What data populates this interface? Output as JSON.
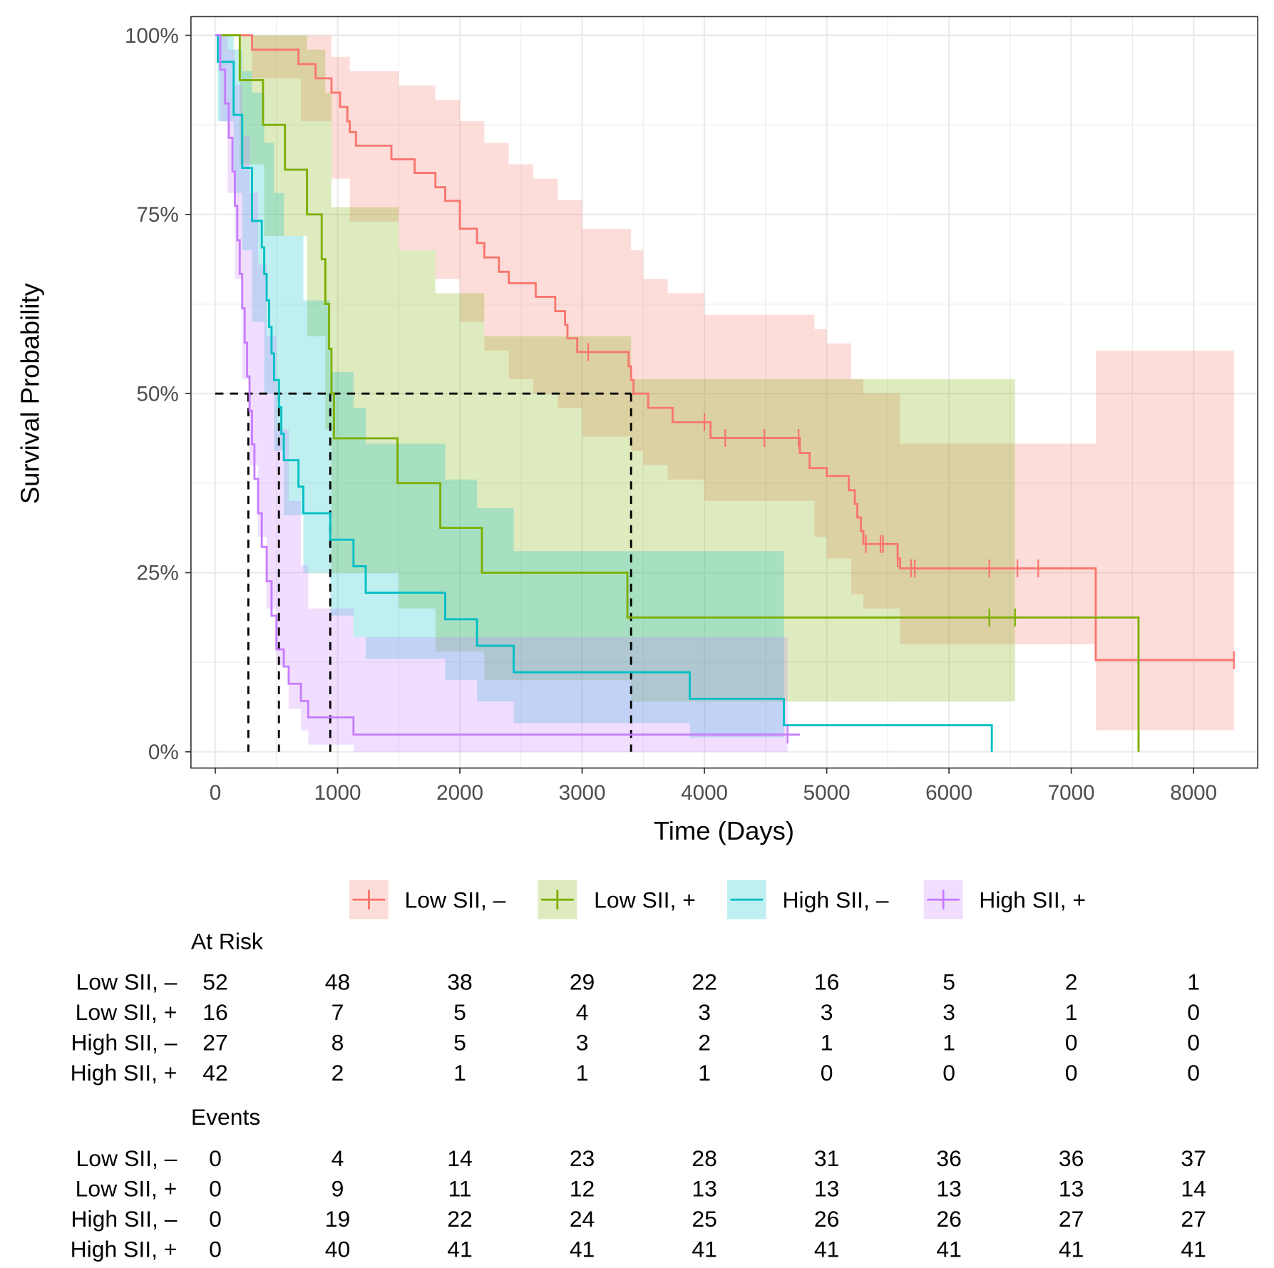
{
  "chart_data": {
    "type": "line",
    "subtype": "kaplan-meier",
    "xlabel": "Time (Days)",
    "ylabel": "Survival Probability",
    "xlim": [
      0,
      8400
    ],
    "ylim": [
      0,
      100
    ],
    "xticks": [
      0,
      1000,
      2000,
      3000,
      4000,
      5000,
      6000,
      7000,
      8000
    ],
    "xtick_labels": [
      "0",
      "1000",
      "2000",
      "3000",
      "4000",
      "5000",
      "6000",
      "7000",
      "8000"
    ],
    "yticks": [
      0,
      25,
      50,
      75,
      100
    ],
    "ytick_labels": [
      "0%",
      "25%",
      "50%",
      "75%",
      "100%"
    ],
    "grid": true,
    "legend_position": "bottom",
    "median_line_y": 50,
    "medians": [
      3400,
      940,
      520,
      270
    ],
    "series": [
      {
        "name": "Low SII, –",
        "color": "#F8766D",
        "end": 8330,
        "steps": [
          [
            0,
            100
          ],
          [
            300,
            98
          ],
          [
            680,
            96
          ],
          [
            820,
            94
          ],
          [
            950,
            92
          ],
          [
            1020,
            90
          ],
          [
            1080,
            88
          ],
          [
            1100,
            86.5
          ],
          [
            1150,
            84.6
          ],
          [
            1440,
            82.7
          ],
          [
            1630,
            80.8
          ],
          [
            1800,
            78.8
          ],
          [
            1880,
            76.9
          ],
          [
            2000,
            73
          ],
          [
            2140,
            71
          ],
          [
            2200,
            69
          ],
          [
            2320,
            67
          ],
          [
            2400,
            65.4
          ],
          [
            2620,
            63.5
          ],
          [
            2780,
            61.5
          ],
          [
            2860,
            59.6
          ],
          [
            2880,
            57.7
          ],
          [
            2960,
            55.8
          ],
          [
            3380,
            53.8
          ],
          [
            3400,
            51.9
          ],
          [
            3420,
            50
          ],
          [
            3540,
            48
          ],
          [
            3740,
            46
          ],
          [
            4050,
            43.8
          ],
          [
            4780,
            41.7
          ],
          [
            4860,
            39.6
          ],
          [
            5000,
            38.5
          ],
          [
            5180,
            36.5
          ],
          [
            5230,
            34.6
          ],
          [
            5250,
            32.7
          ],
          [
            5280,
            30.8
          ],
          [
            5300,
            29
          ],
          [
            5580,
            27
          ],
          [
            5600,
            25.6
          ],
          [
            7200,
            12.8
          ]
        ],
        "censor": [
          3050,
          4000,
          4170,
          4490,
          4770,
          5320,
          5440,
          5460,
          5580,
          5690,
          5720,
          6330,
          6560,
          6730,
          8330
        ],
        "ci": [
          [
            0,
            100,
            100
          ],
          [
            300,
            94,
            100
          ],
          [
            700,
            88,
            100
          ],
          [
            950,
            80,
            97
          ],
          [
            1100,
            74,
            95
          ],
          [
            1500,
            70,
            93
          ],
          [
            1800,
            66,
            91
          ],
          [
            2000,
            60,
            88
          ],
          [
            2200,
            56,
            85
          ],
          [
            2400,
            52,
            82
          ],
          [
            2600,
            50,
            80
          ],
          [
            2800,
            48,
            77
          ],
          [
            3000,
            44,
            73
          ],
          [
            3400,
            42,
            70
          ],
          [
            3500,
            40,
            66
          ],
          [
            3700,
            38,
            64
          ],
          [
            4000,
            35,
            61
          ],
          [
            4900,
            30,
            59
          ],
          [
            5000,
            27,
            57
          ],
          [
            5200,
            22,
            52
          ],
          [
            5300,
            20,
            50
          ],
          [
            5600,
            15,
            43
          ],
          [
            7200,
            3,
            56
          ]
        ]
      },
      {
        "name": "Low SII, +",
        "color": "#7CAE00",
        "end": 7550,
        "steps": [
          [
            0,
            100
          ],
          [
            200,
            93.75
          ],
          [
            390,
            87.5
          ],
          [
            570,
            81.25
          ],
          [
            750,
            75
          ],
          [
            870,
            68.75
          ],
          [
            900,
            62.5
          ],
          [
            930,
            56.25
          ],
          [
            950,
            50
          ],
          [
            970,
            43.75
          ],
          [
            1490,
            37.5
          ],
          [
            1840,
            31.25
          ],
          [
            2180,
            25
          ],
          [
            3370,
            18.75
          ],
          [
            7550,
            0
          ]
        ],
        "censor": [
          6330,
          6540
        ],
        "ci": [
          [
            0,
            100,
            100
          ],
          [
            200,
            82,
            100
          ],
          [
            400,
            72,
            100
          ],
          [
            750,
            58,
            98
          ],
          [
            900,
            45,
            92
          ],
          [
            950,
            25,
            76
          ],
          [
            1500,
            20,
            70
          ],
          [
            1800,
            14,
            64
          ],
          [
            2200,
            10,
            58
          ],
          [
            3400,
            7,
            52
          ]
        ],
        "ci_end": 6540
      },
      {
        "name": "High SII, –",
        "color": "#00BFC4",
        "end": 6350,
        "steps": [
          [
            0,
            100
          ],
          [
            20,
            96.3
          ],
          [
            150,
            88.9
          ],
          [
            220,
            81.5
          ],
          [
            300,
            74.1
          ],
          [
            380,
            70.4
          ],
          [
            400,
            66.7
          ],
          [
            420,
            63
          ],
          [
            440,
            59.3
          ],
          [
            460,
            55.6
          ],
          [
            480,
            51.9
          ],
          [
            520,
            48.1
          ],
          [
            540,
            44.4
          ],
          [
            560,
            40.7
          ],
          [
            680,
            37
          ],
          [
            720,
            33.3
          ],
          [
            940,
            29.6
          ],
          [
            1130,
            25.9
          ],
          [
            1230,
            22.2
          ],
          [
            1880,
            18.5
          ],
          [
            2140,
            14.8
          ],
          [
            2440,
            11.1
          ],
          [
            3880,
            7.4
          ],
          [
            4650,
            3.7
          ],
          [
            6350,
            0
          ]
        ],
        "censor": [],
        "ci": [
          [
            0,
            100,
            100
          ],
          [
            20,
            88,
            100
          ],
          [
            150,
            78,
            98
          ],
          [
            220,
            70,
            95
          ],
          [
            300,
            60,
            92
          ],
          [
            400,
            50,
            85
          ],
          [
            480,
            42,
            78
          ],
          [
            560,
            33,
            72
          ],
          [
            720,
            25,
            63
          ],
          [
            940,
            19,
            53
          ],
          [
            1130,
            16,
            48
          ],
          [
            1230,
            13,
            43
          ],
          [
            1880,
            10,
            38
          ],
          [
            2140,
            7,
            34
          ],
          [
            2440,
            4,
            28
          ],
          [
            3880,
            2,
            28
          ]
        ],
        "ci_end": 4650
      },
      {
        "name": "High SII, +",
        "color": "#C77CFF",
        "end": 4780,
        "steps": [
          [
            0,
            100
          ],
          [
            40,
            95.2
          ],
          [
            80,
            90.5
          ],
          [
            110,
            85.7
          ],
          [
            140,
            81
          ],
          [
            160,
            76.2
          ],
          [
            180,
            71.4
          ],
          [
            200,
            66.7
          ],
          [
            220,
            61.9
          ],
          [
            240,
            57.1
          ],
          [
            260,
            52.4
          ],
          [
            280,
            47.6
          ],
          [
            300,
            42.9
          ],
          [
            320,
            38.1
          ],
          [
            350,
            33.3
          ],
          [
            380,
            28.6
          ],
          [
            420,
            23.8
          ],
          [
            460,
            19
          ],
          [
            500,
            14.3
          ],
          [
            560,
            11.9
          ],
          [
            600,
            9.5
          ],
          [
            700,
            7.1
          ],
          [
            760,
            4.8
          ],
          [
            1130,
            2.4
          ]
        ],
        "censor": [
          4680
        ],
        "ci": [
          [
            0,
            100,
            100
          ],
          [
            40,
            88,
            100
          ],
          [
            100,
            78,
            98
          ],
          [
            160,
            66,
            93
          ],
          [
            220,
            52,
            86
          ],
          [
            280,
            40,
            78
          ],
          [
            350,
            30,
            68
          ],
          [
            420,
            20,
            58
          ],
          [
            500,
            12,
            45
          ],
          [
            600,
            6,
            35
          ],
          [
            700,
            3,
            26
          ],
          [
            760,
            1,
            20
          ],
          [
            1130,
            0,
            16
          ]
        ],
        "ci_end": 4680
      }
    ],
    "risk_table": {
      "at_risk_title": "At Risk",
      "events_title": "Events",
      "row_labels": [
        "Low SII, –",
        "Low SII, +",
        "High SII, –",
        "High SII, +"
      ],
      "at_risk": [
        [
          "52",
          "48",
          "38",
          "29",
          "22",
          "16",
          "5",
          "2",
          "1"
        ],
        [
          "16",
          "7",
          "5",
          "4",
          "3",
          "3",
          "3",
          "1",
          "0"
        ],
        [
          "27",
          "8",
          "5",
          "3",
          "2",
          "1",
          "1",
          "0",
          "0"
        ],
        [
          "42",
          "2",
          "1",
          "1",
          "1",
          "0",
          "0",
          "0",
          "0"
        ]
      ],
      "events": [
        [
          "0",
          "4",
          "14",
          "23",
          "28",
          "31",
          "36",
          "36",
          "37"
        ],
        [
          "0",
          "9",
          "11",
          "12",
          "13",
          "13",
          "13",
          "13",
          "14"
        ],
        [
          "0",
          "19",
          "22",
          "24",
          "25",
          "26",
          "26",
          "27",
          "27"
        ],
        [
          "0",
          "40",
          "41",
          "41",
          "41",
          "41",
          "41",
          "41",
          "41"
        ]
      ]
    }
  }
}
